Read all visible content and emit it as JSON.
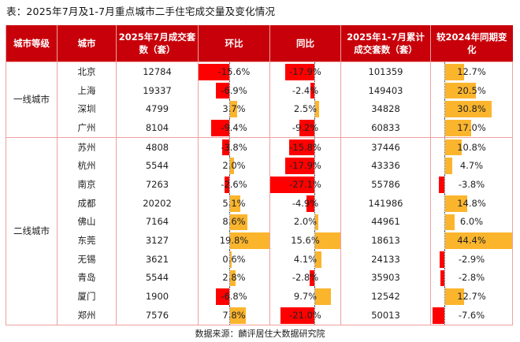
{
  "title": "表：2025年7月及1-7月重点城市二手住宅成交量及变化情况",
  "headers": [
    "城市等级",
    "城市",
    "2025年7月成交套数（套）",
    "环比",
    "同比",
    "2025年1-7月累计成交套数（套）",
    "较2024年同期变化"
  ],
  "colors": {
    "header_bg": "#c8000a",
    "negative": "#ff0000",
    "positive": "#fbb52d",
    "border": "#f0a0a0"
  },
  "groups": [
    {
      "tier": "一线城市",
      "rows": [
        {
          "city": "北京",
          "jul": "12784",
          "mom": -15.6,
          "yoy": -17.9,
          "ytd": "101359",
          "ytd_chg": 12.7
        },
        {
          "city": "上海",
          "jul": "19337",
          "mom": -6.9,
          "yoy": -2.4,
          "ytd": "149403",
          "ytd_chg": 20.5
        },
        {
          "city": "深圳",
          "jul": "4799",
          "mom": 3.7,
          "yoy": 2.5,
          "ytd": "34828",
          "ytd_chg": 30.8
        },
        {
          "city": "广州",
          "jul": "8104",
          "mom": -9.4,
          "yoy": -9.2,
          "ytd": "60833",
          "ytd_chg": 17.0
        }
      ]
    },
    {
      "tier": "二线城市",
      "rows": [
        {
          "city": "苏州",
          "jul": "4808",
          "mom": -3.8,
          "yoy": -15.8,
          "ytd": "37446",
          "ytd_chg": 10.8
        },
        {
          "city": "杭州",
          "jul": "5544",
          "mom": 2.0,
          "yoy": -17.9,
          "ytd": "43336",
          "ytd_chg": 4.7
        },
        {
          "city": "南京",
          "jul": "7263",
          "mom": -2.6,
          "yoy": -27.1,
          "ytd": "55786",
          "ytd_chg": -3.8
        },
        {
          "city": "成都",
          "jul": "20202",
          "mom": 5.1,
          "yoy": -4.9,
          "ytd": "141986",
          "ytd_chg": 14.8
        },
        {
          "city": "佛山",
          "jul": "7164",
          "mom": 8.6,
          "yoy": 2.0,
          "ytd": "44961",
          "ytd_chg": 6.0
        },
        {
          "city": "东莞",
          "jul": "3127",
          "mom": 19.8,
          "yoy": 15.6,
          "ytd": "18613",
          "ytd_chg": 44.4
        },
        {
          "city": "无锡",
          "jul": "3621",
          "mom": 0.6,
          "yoy": 4.1,
          "ytd": "24133",
          "ytd_chg": -2.9
        },
        {
          "city": "青岛",
          "jul": "5544",
          "mom": 2.8,
          "yoy": -2.8,
          "ytd": "35903",
          "ytd_chg": -2.8
        },
        {
          "city": "厦门",
          "jul": "1900",
          "mom": -6.8,
          "yoy": 9.7,
          "ytd": "12542",
          "ytd_chg": 12.7
        },
        {
          "city": "郑州",
          "jul": "7576",
          "mom": 7.8,
          "yoy": -21.0,
          "ytd": "50013",
          "ytd_chg": -7.6
        }
      ]
    }
  ],
  "source": "数据来源：麟评居住大数据研究院"
}
